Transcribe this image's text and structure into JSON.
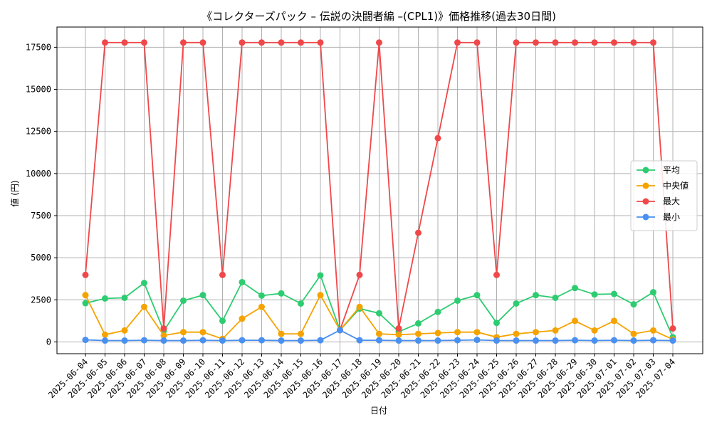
{
  "chart_data": {
    "type": "line",
    "title": "《コレクターズパック – 伝説の決闘者編 –(CPL1)》価格推移(過去30日間)",
    "xlabel": "日付",
    "ylabel": "値 (円)",
    "ylim": [
      -700,
      18700
    ],
    "yticks": [
      0,
      2500,
      5000,
      7500,
      10000,
      12500,
      15000,
      17500
    ],
    "grid": true,
    "legend_position": "center-right",
    "categories": [
      "2025-06-04",
      "2025-06-05",
      "2025-06-06",
      "2025-06-07",
      "2025-06-08",
      "2025-06-09",
      "2025-06-10",
      "2025-06-11",
      "2025-06-12",
      "2025-06-13",
      "2025-06-14",
      "2025-06-15",
      "2025-06-16",
      "2025-06-17",
      "2025-06-18",
      "2025-06-19",
      "2025-06-20",
      "2025-06-21",
      "2025-06-22",
      "2025-06-23",
      "2025-06-24",
      "2025-06-25",
      "2025-06-26",
      "2025-06-27",
      "2025-06-28",
      "2025-06-29",
      "2025-06-30",
      "2025-07-01",
      "2025-07-02",
      "2025-07-03",
      "2025-07-04"
    ],
    "series": [
      {
        "name": "平均",
        "color": "#2ecc71",
        "values": [
          2300,
          2580,
          2620,
          3500,
          650,
          2450,
          2780,
          1250,
          3550,
          2750,
          2880,
          2280,
          3950,
          700,
          1980,
          1700,
          600,
          1100,
          1780,
          2450,
          2780,
          1130,
          2280,
          2780,
          2620,
          3200,
          2820,
          2850,
          2230,
          2950,
          280
        ]
      },
      {
        "name": "中央値",
        "color": "#f5a300",
        "values": [
          2780,
          430,
          680,
          2080,
          380,
          580,
          580,
          180,
          1380,
          2080,
          480,
          480,
          2780,
          700,
          2080,
          480,
          430,
          480,
          530,
          580,
          580,
          280,
          480,
          580,
          680,
          1250,
          680,
          1250,
          480,
          680,
          150
        ]
      },
      {
        "name": "最大",
        "color": "#f0484a",
        "values": [
          3980,
          17780,
          17780,
          17780,
          800,
          17780,
          17780,
          3980,
          17780,
          17780,
          17780,
          17780,
          17780,
          700,
          3980,
          17780,
          800,
          6480,
          12100,
          17780,
          17780,
          3980,
          17780,
          17780,
          17780,
          17780,
          17780,
          17780,
          17780,
          17780,
          800
        ]
      },
      {
        "name": "最小",
        "color": "#4a90f0",
        "values": [
          120,
          80,
          80,
          100,
          80,
          80,
          100,
          80,
          100,
          100,
          80,
          80,
          100,
          700,
          100,
          100,
          80,
          80,
          80,
          100,
          120,
          80,
          80,
          80,
          80,
          100,
          80,
          100,
          80,
          100,
          80
        ]
      }
    ]
  }
}
